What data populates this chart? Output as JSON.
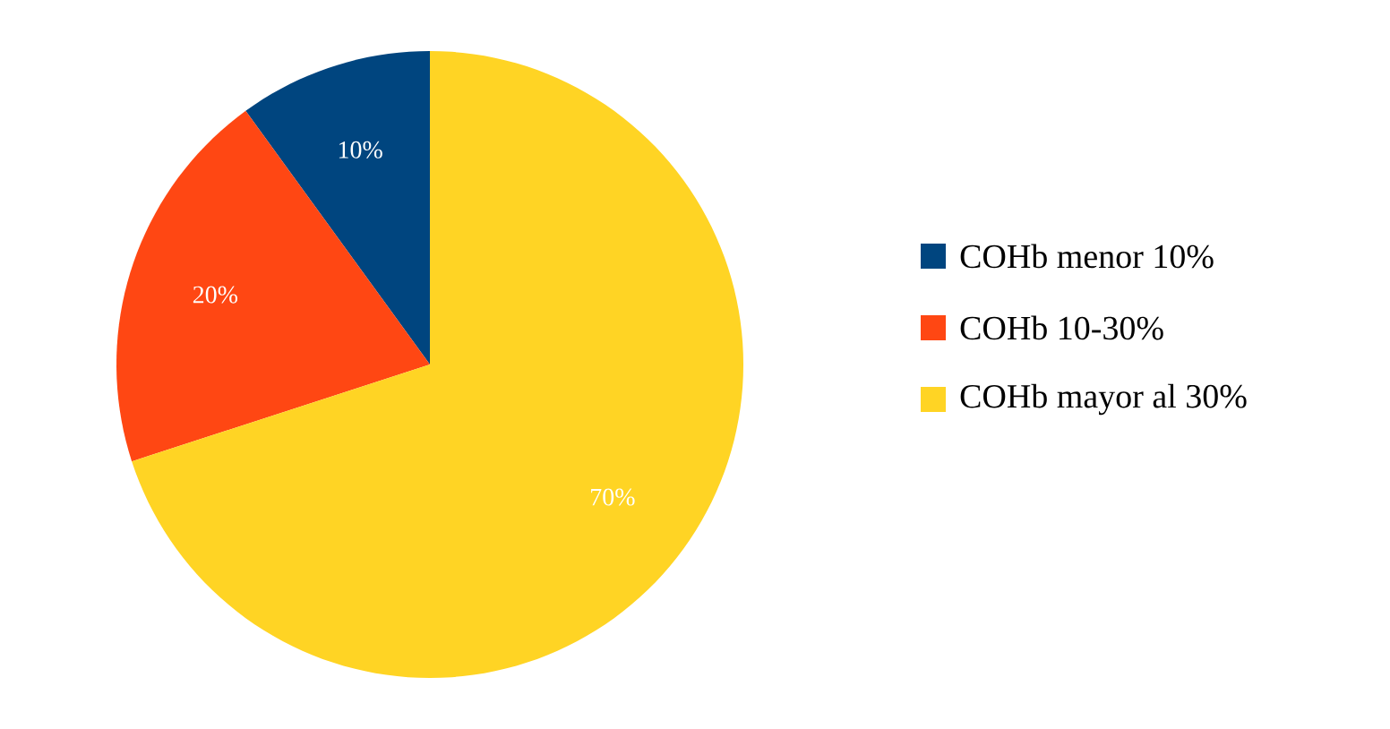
{
  "chart_data": {
    "type": "pie",
    "categories": [
      "COHb menor 10%",
      "COHb 10-30%",
      "COHb mayor al 30%"
    ],
    "values": [
      10,
      20,
      70
    ],
    "value_labels": [
      "10%",
      "20%",
      "70%"
    ],
    "colors": [
      "#00457f",
      "#ff4713",
      "#ffd424"
    ],
    "legend": "right"
  }
}
